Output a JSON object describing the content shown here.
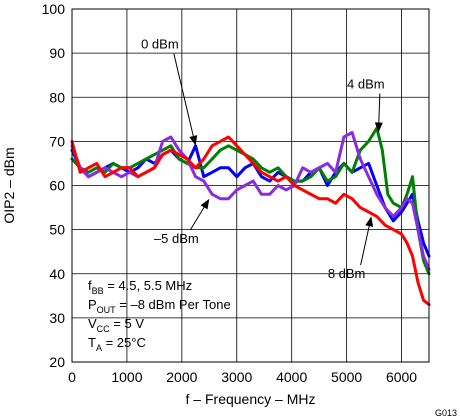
{
  "chart_data": {
    "type": "line",
    "xlabel": "f – Frequency – MHz",
    "ylabel": "OIP2 – dBm",
    "xlim": [
      0,
      6500
    ],
    "ylim": [
      20,
      100
    ],
    "xticks": [
      0,
      1000,
      2000,
      3000,
      4000,
      5000,
      6000
    ],
    "yticks": [
      20,
      30,
      40,
      50,
      60,
      70,
      80,
      90,
      100
    ],
    "grid": true,
    "figure_id": "G013",
    "conditions": [
      {
        "main": "f",
        "sub": "BB",
        "rest": " = 4.5, 5.5 MHz"
      },
      {
        "main": "P",
        "sub": "OUT",
        "rest": " = –8 dBm Per Tone"
      },
      {
        "main": "V",
        "sub": "CC",
        "rest": " = 5 V"
      },
      {
        "main": "T",
        "sub": "A",
        "rest": " = 25°C"
      }
    ],
    "series": [
      {
        "name": "0 dBm",
        "color": "#0000ff",
        "label_pos": {
          "x": 1600,
          "y": 91
        },
        "arrow_to": {
          "x": 2250,
          "y": 69
        },
        "points": [
          [
            0,
            68
          ],
          [
            150,
            64
          ],
          [
            300,
            62
          ],
          [
            450,
            63
          ],
          [
            600,
            64
          ],
          [
            750,
            65
          ],
          [
            900,
            64
          ],
          [
            1050,
            63
          ],
          [
            1200,
            64
          ],
          [
            1350,
            66
          ],
          [
            1500,
            65
          ],
          [
            1650,
            67
          ],
          [
            1800,
            68
          ],
          [
            1950,
            66
          ],
          [
            2100,
            65
          ],
          [
            2250,
            69
          ],
          [
            2400,
            62
          ],
          [
            2550,
            63
          ],
          [
            2700,
            64
          ],
          [
            2850,
            64
          ],
          [
            3000,
            62
          ],
          [
            3150,
            64
          ],
          [
            3300,
            65
          ],
          [
            3450,
            62
          ],
          [
            3600,
            61
          ],
          [
            3750,
            63
          ],
          [
            3900,
            62
          ],
          [
            4050,
            61
          ],
          [
            4200,
            61
          ],
          [
            4350,
            63
          ],
          [
            4500,
            64
          ],
          [
            4650,
            60
          ],
          [
            4800,
            63
          ],
          [
            4950,
            65
          ],
          [
            5100,
            63
          ],
          [
            5250,
            64
          ],
          [
            5400,
            65
          ],
          [
            5550,
            60
          ],
          [
            5700,
            55
          ],
          [
            5850,
            52
          ],
          [
            6000,
            54
          ],
          [
            6100,
            56
          ],
          [
            6200,
            58
          ],
          [
            6300,
            52
          ],
          [
            6400,
            47
          ],
          [
            6500,
            44
          ]
        ]
      },
      {
        "name": "4 dBm",
        "color": "#008000",
        "label_pos": {
          "x": 5350,
          "y": 82
        },
        "arrow_to": {
          "x": 5580,
          "y": 72
        },
        "points": [
          [
            0,
            66
          ],
          [
            150,
            64
          ],
          [
            300,
            63
          ],
          [
            450,
            64
          ],
          [
            600,
            63
          ],
          [
            750,
            65
          ],
          [
            900,
            64
          ],
          [
            1050,
            64
          ],
          [
            1200,
            65
          ],
          [
            1350,
            66
          ],
          [
            1500,
            67
          ],
          [
            1650,
            68
          ],
          [
            1800,
            69
          ],
          [
            1950,
            66
          ],
          [
            2100,
            65
          ],
          [
            2250,
            64
          ],
          [
            2400,
            64
          ],
          [
            2550,
            66
          ],
          [
            2700,
            68
          ],
          [
            2850,
            69
          ],
          [
            3000,
            68
          ],
          [
            3150,
            67
          ],
          [
            3300,
            66
          ],
          [
            3450,
            64
          ],
          [
            3600,
            63
          ],
          [
            3750,
            64
          ],
          [
            3900,
            62
          ],
          [
            4050,
            61
          ],
          [
            4200,
            61
          ],
          [
            4350,
            62
          ],
          [
            4500,
            64
          ],
          [
            4650,
            61
          ],
          [
            4800,
            62
          ],
          [
            4950,
            65
          ],
          [
            5100,
            63
          ],
          [
            5250,
            68
          ],
          [
            5400,
            70
          ],
          [
            5550,
            73
          ],
          [
            5650,
            68
          ],
          [
            5750,
            58
          ],
          [
            5850,
            56
          ],
          [
            6000,
            55
          ],
          [
            6100,
            58
          ],
          [
            6200,
            62
          ],
          [
            6300,
            50
          ],
          [
            6400,
            43
          ],
          [
            6500,
            40
          ]
        ]
      },
      {
        "name": "–5 dBm",
        "color": "#8a2be2",
        "label_pos": {
          "x": 1900,
          "y": 47
        },
        "arrow_to": {
          "x": 2500,
          "y": 57
        },
        "points": [
          [
            0,
            69
          ],
          [
            150,
            64
          ],
          [
            300,
            62
          ],
          [
            450,
            63
          ],
          [
            600,
            64
          ],
          [
            750,
            63
          ],
          [
            900,
            62
          ],
          [
            1050,
            63
          ],
          [
            1200,
            62
          ],
          [
            1350,
            63
          ],
          [
            1500,
            64
          ],
          [
            1650,
            70
          ],
          [
            1800,
            71
          ],
          [
            1950,
            68
          ],
          [
            2100,
            66
          ],
          [
            2250,
            62
          ],
          [
            2400,
            61
          ],
          [
            2550,
            58
          ],
          [
            2700,
            57
          ],
          [
            2850,
            57
          ],
          [
            3000,
            59
          ],
          [
            3150,
            60
          ],
          [
            3300,
            61
          ],
          [
            3450,
            58
          ],
          [
            3600,
            58
          ],
          [
            3750,
            60
          ],
          [
            3900,
            59
          ],
          [
            4050,
            60
          ],
          [
            4200,
            64
          ],
          [
            4350,
            63
          ],
          [
            4500,
            64
          ],
          [
            4650,
            65
          ],
          [
            4800,
            63
          ],
          [
            4950,
            71
          ],
          [
            5100,
            72
          ],
          [
            5250,
            66
          ],
          [
            5400,
            62
          ],
          [
            5550,
            58
          ],
          [
            5700,
            55
          ],
          [
            5850,
            53
          ],
          [
            6000,
            55
          ],
          [
            6100,
            57
          ],
          [
            6200,
            56
          ],
          [
            6300,
            50
          ],
          [
            6400,
            44
          ],
          [
            6500,
            41
          ]
        ]
      },
      {
        "name": "8 dBm",
        "color": "#ff0000",
        "label_pos": {
          "x": 5000,
          "y": 39
        },
        "arrow_to": {
          "x": 5450,
          "y": 53
        },
        "points": [
          [
            0,
            70
          ],
          [
            150,
            63
          ],
          [
            300,
            64
          ],
          [
            450,
            65
          ],
          [
            600,
            62
          ],
          [
            750,
            63
          ],
          [
            900,
            64
          ],
          [
            1050,
            64
          ],
          [
            1200,
            62
          ],
          [
            1350,
            63
          ],
          [
            1500,
            64
          ],
          [
            1650,
            67
          ],
          [
            1800,
            68
          ],
          [
            1950,
            67
          ],
          [
            2100,
            66
          ],
          [
            2250,
            64
          ],
          [
            2400,
            66
          ],
          [
            2550,
            69
          ],
          [
            2700,
            70
          ],
          [
            2850,
            71
          ],
          [
            3000,
            69
          ],
          [
            3150,
            67
          ],
          [
            3300,
            65
          ],
          [
            3450,
            63
          ],
          [
            3600,
            62
          ],
          [
            3750,
            61
          ],
          [
            3900,
            62
          ],
          [
            4050,
            60
          ],
          [
            4200,
            59
          ],
          [
            4350,
            58
          ],
          [
            4500,
            57
          ],
          [
            4650,
            57
          ],
          [
            4800,
            56
          ],
          [
            4950,
            58
          ],
          [
            5100,
            57
          ],
          [
            5250,
            55
          ],
          [
            5400,
            54
          ],
          [
            5550,
            53
          ],
          [
            5700,
            51
          ],
          [
            5850,
            50
          ],
          [
            6000,
            49
          ],
          [
            6100,
            47
          ],
          [
            6200,
            44
          ],
          [
            6300,
            38
          ],
          [
            6400,
            34
          ],
          [
            6500,
            33
          ]
        ]
      }
    ]
  }
}
